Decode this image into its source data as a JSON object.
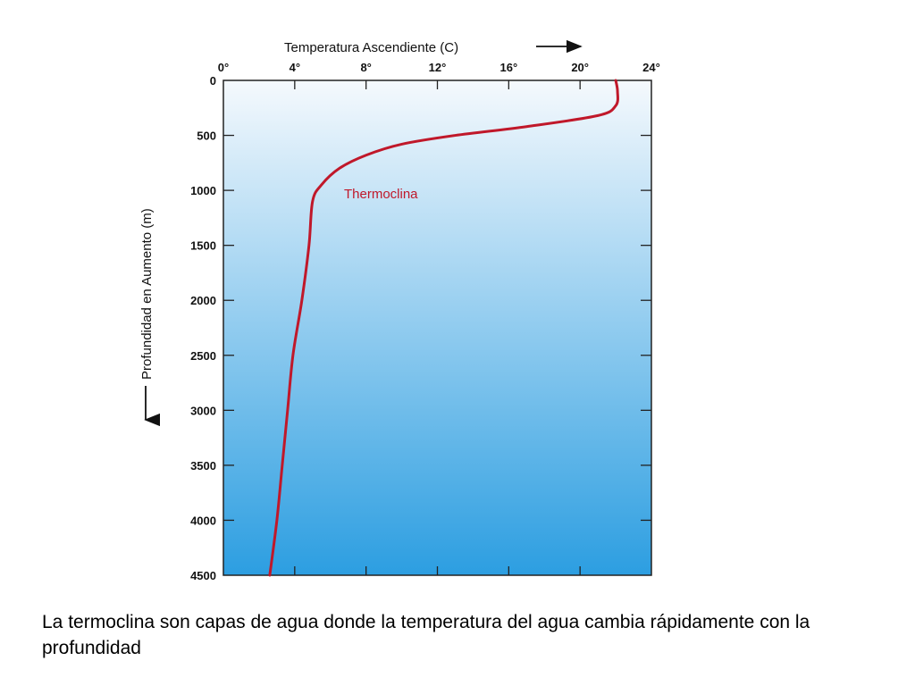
{
  "chart_data": {
    "type": "line",
    "xlabel": "Temperatura Ascendiente (C)",
    "ylabel": "Profundidad en Aumento (m)",
    "xlim": [
      0,
      24
    ],
    "ylim": [
      0,
      4500
    ],
    "x_ticks": [
      0,
      4,
      8,
      12,
      16,
      20,
      24
    ],
    "x_tick_labels": [
      "0°",
      "4°",
      "8°",
      "12°",
      "16°",
      "20°",
      "24°"
    ],
    "y_ticks": [
      0,
      500,
      1000,
      1500,
      2000,
      2500,
      3000,
      3500,
      4000,
      4500
    ],
    "y_tick_labels": [
      "0",
      "500",
      "1000",
      "1500",
      "2000",
      "2500",
      "3000",
      "3500",
      "4000",
      "4500"
    ],
    "x_axis_position": "top",
    "y_axis_inverted": true,
    "annotation": "Thermoclina",
    "series": [
      {
        "color": "#c0182a",
        "points": [
          {
            "x": 22.0,
            "y": 0
          },
          {
            "x": 22.1,
            "y": 100
          },
          {
            "x": 22.0,
            "y": 230
          },
          {
            "x": 21.0,
            "y": 320
          },
          {
            "x": 17.0,
            "y": 420
          },
          {
            "x": 13.0,
            "y": 500
          },
          {
            "x": 10.0,
            "y": 580
          },
          {
            "x": 8.0,
            "y": 680
          },
          {
            "x": 6.5,
            "y": 800
          },
          {
            "x": 5.5,
            "y": 950
          },
          {
            "x": 5.0,
            "y": 1100
          },
          {
            "x": 4.8,
            "y": 1500
          },
          {
            "x": 4.4,
            "y": 2000
          },
          {
            "x": 3.9,
            "y": 2500
          },
          {
            "x": 3.6,
            "y": 3000
          },
          {
            "x": 3.3,
            "y": 3500
          },
          {
            "x": 3.0,
            "y": 4000
          },
          {
            "x": 2.6,
            "y": 4500
          }
        ]
      }
    ],
    "background_gradient": [
      "#f5f9fd",
      "#2c9ee1"
    ]
  },
  "caption": "La termoclina son capas de agua donde la temperatura del agua cambia rápidamente con la profundidad"
}
